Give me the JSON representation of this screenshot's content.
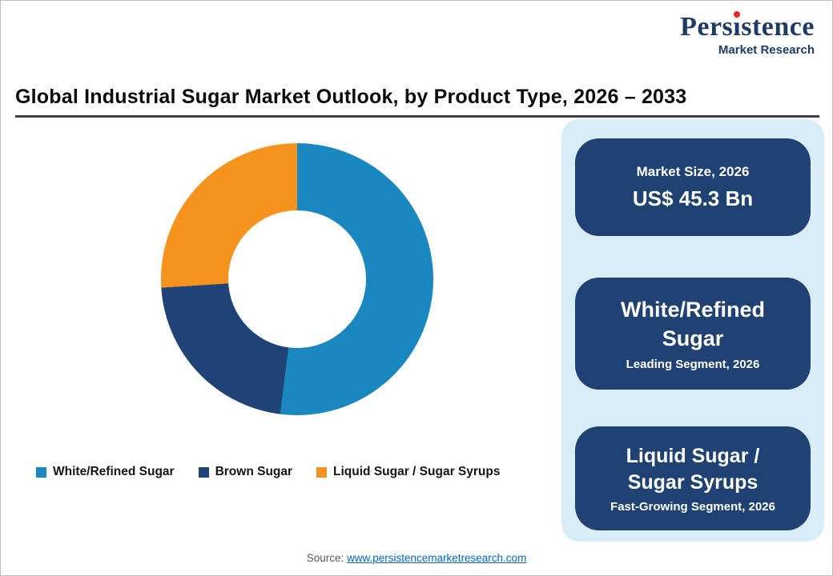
{
  "logo": {
    "name": "Persistence",
    "subtitle": "Market Research",
    "text_color": "#1E3A67",
    "dot_color": "#E8262A"
  },
  "title": "Global Industrial Sugar Market Outlook, by Product Type, 2026 – 2033",
  "chart_data": {
    "type": "pie",
    "subtype": "donut",
    "title": "Global Industrial Sugar Market Outlook, by Product Type, 2026 – 2033",
    "hole_ratio": 0.5,
    "start_angle_deg": 0,
    "legend_position": "bottom",
    "series": [
      {
        "name": "White/Refined Sugar",
        "value": 52,
        "color": "#1B87C0"
      },
      {
        "name": "Brown Sugar",
        "value": 22,
        "color": "#1F4377"
      },
      {
        "name": "Liquid Sugar / Sugar Syrups",
        "value": 26,
        "color": "#F6921E"
      }
    ]
  },
  "info_panel": {
    "background": "#D9EDF9",
    "card_color": "#1F4173",
    "cards": [
      {
        "heading": "Market Size, 2026",
        "value": "US$ 45.3 Bn"
      },
      {
        "heading": "White/Refined Sugar",
        "value": "Leading Segment, 2026"
      },
      {
        "heading": "Liquid Sugar / Sugar Syrups",
        "value": "Fast-Growing Segment, 2026"
      }
    ]
  },
  "footer": {
    "source_label": "Source:",
    "source_link": "www.persistencemarketresearch.com"
  }
}
